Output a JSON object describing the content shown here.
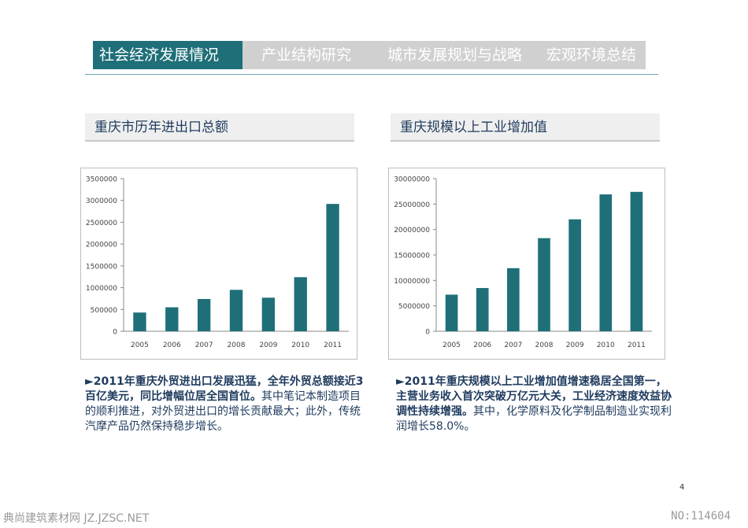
{
  "nav": {
    "tabs": [
      {
        "label": "社会经济发展情况",
        "active": true
      },
      {
        "label": "产业结构研究",
        "active": false
      },
      {
        "label": "城市发展规划与战略",
        "active": false
      },
      {
        "label": "宏观环境总结",
        "active": false
      }
    ]
  },
  "left": {
    "section_title": "重庆市历年进出口总额",
    "desc_bold": "►2011年重庆外贸进出口发展迅猛，全年外贸总额接近3百亿美元，同比增幅位居全国首位。",
    "desc_rest": "其中笔记本制造项目的顺利推进，对外贸进出口的增长贡献最大；此外，传统汽摩产品仍然保持稳步增长。"
  },
  "right": {
    "section_title": "重庆规模以上工业增加值",
    "desc_bold": "►2011年重庆规模以上工业增加值增速稳居全国第一，主营业务收入首次突破万亿元大关，工业经济速度效益协调性持续增强。",
    "desc_rest": "其中，化学原料及化学制品制造业实现利润增长58.0%。"
  },
  "colors": {
    "bar": "#1f6f79",
    "nav_active": "#1f6f79",
    "nav_bg": "#d0d0d0"
  },
  "chart_data": [
    {
      "type": "bar",
      "categories": [
        "2005",
        "2006",
        "2007",
        "2008",
        "2009",
        "2010",
        "2011"
      ],
      "values": [
        430000,
        550000,
        740000,
        950000,
        770000,
        1240000,
        2920000
      ],
      "yticks": [
        "0",
        "500000",
        "1000000",
        "1500000",
        "2000000",
        "2500000",
        "3000000",
        "3500000"
      ],
      "ylim": [
        0,
        3500000
      ],
      "title": "",
      "xlabel": "",
      "ylabel": "",
      "grid": false,
      "legend": false
    },
    {
      "type": "bar",
      "categories": [
        "2005",
        "2006",
        "2007",
        "2008",
        "2009",
        "2010",
        "2011"
      ],
      "values": [
        7200000,
        8500000,
        12400000,
        18300000,
        22000000,
        26900000,
        27400000
      ],
      "yticks": [
        "0",
        "5000000",
        "10000000",
        "15000000",
        "20000000",
        "25000000",
        "30000000"
      ],
      "ylim": [
        0,
        30000000
      ],
      "title": "",
      "xlabel": "",
      "ylabel": "",
      "grid": false,
      "legend": false
    }
  ],
  "page_number": "4",
  "footer": {
    "left": "典尚建筑素材网 JZ.JZSC.NET",
    "right": "NO:114604"
  }
}
